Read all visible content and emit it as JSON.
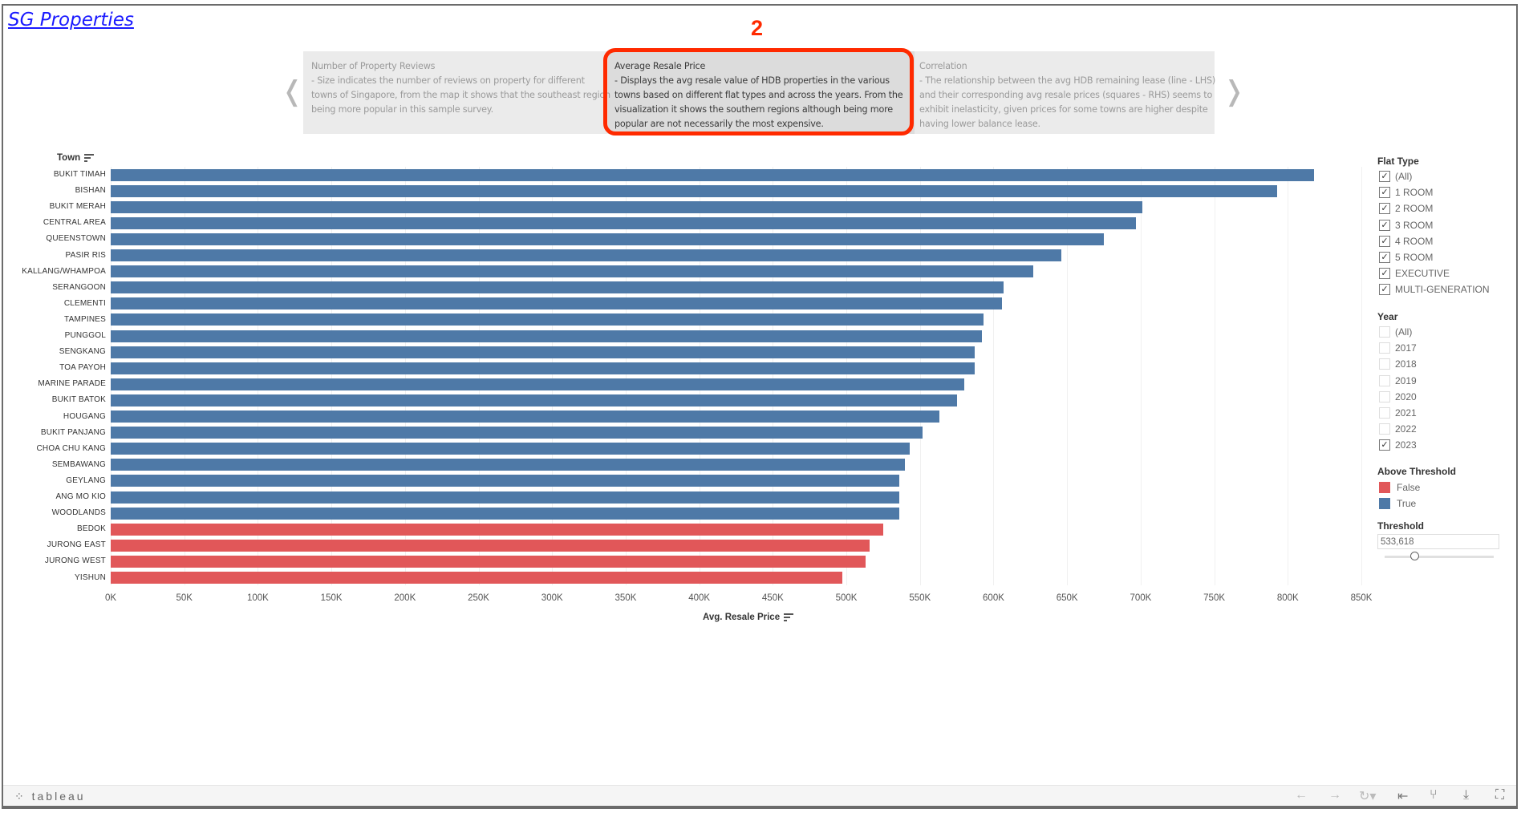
{
  "header": {
    "title": "SG Properties",
    "step_marker": "2"
  },
  "carousel": {
    "panels": [
      {
        "title": "Number of Property Reviews",
        "body": "- Size indicates the number of reviews on property for different towns of Singapore, from the map it shows that the southeast region being more popular in this sample survey."
      },
      {
        "title": "Average Resale Price",
        "body": "- Displays the avg resale value of HDB properties in the various towns based on different flat types and across the years. From the visualization it shows the southern regions although being more popular are not necessarily the most expensive."
      },
      {
        "title": "Correlation",
        "body": "- The relationship between the avg HDB remaining lease (line - LHS) and their corresponding avg resale prices (squares - RHS) seems to exhibit inelasticity, given prices for some towns are higher despite having lower balance lease."
      }
    ],
    "prev_icon": "chevron-left-icon",
    "next_icon": "chevron-right-icon"
  },
  "chart_data": {
    "type": "bar",
    "orientation": "horizontal",
    "ylabel": "Town",
    "xlabel": "Avg. Resale Price",
    "xlim": [
      0,
      850000
    ],
    "tick_labels": [
      "0K",
      "50K",
      "100K",
      "150K",
      "200K",
      "250K",
      "300K",
      "350K",
      "400K",
      "450K",
      "500K",
      "550K",
      "600K",
      "650K",
      "700K",
      "750K",
      "800K",
      "850K"
    ],
    "categories": [
      "BUKIT TIMAH",
      "BISHAN",
      "BUKIT MERAH",
      "CENTRAL AREA",
      "QUEENSTOWN",
      "PASIR RIS",
      "KALLANG/WHAMPOA",
      "SERANGOON",
      "CLEMENTI",
      "TAMPINES",
      "PUNGGOL",
      "SENGKANG",
      "TOA PAYOH",
      "MARINE PARADE",
      "BUKIT BATOK",
      "HOUGANG",
      "BUKIT PANJANG",
      "CHOA CHU KANG",
      "SEMBAWANG",
      "GEYLANG",
      "ANG MO KIO",
      "WOODLANDS",
      "BEDOK",
      "JURONG EAST",
      "JURONG WEST",
      "YISHUN"
    ],
    "values": [
      818000,
      793000,
      701000,
      697000,
      675000,
      646000,
      627000,
      607000,
      606000,
      593000,
      592000,
      587000,
      587000,
      580000,
      575000,
      563000,
      552000,
      543000,
      540000,
      536000,
      536000,
      536000,
      525000,
      516000,
      513000,
      497000
    ],
    "above_threshold": [
      true,
      true,
      true,
      true,
      true,
      true,
      true,
      true,
      true,
      true,
      true,
      true,
      true,
      true,
      true,
      true,
      true,
      true,
      true,
      true,
      true,
      true,
      false,
      false,
      false,
      false
    ],
    "colors": {
      "true": "#4e79a7",
      "false": "#e15759"
    }
  },
  "filters": {
    "flat_type": {
      "title": "Flat Type",
      "items": [
        {
          "label": "(All)",
          "checked": true
        },
        {
          "label": "1 ROOM",
          "checked": true
        },
        {
          "label": "2 ROOM",
          "checked": true
        },
        {
          "label": "3 ROOM",
          "checked": true
        },
        {
          "label": "4 ROOM",
          "checked": true
        },
        {
          "label": "5 ROOM",
          "checked": true
        },
        {
          "label": "EXECUTIVE",
          "checked": true
        },
        {
          "label": "MULTI-GENERATION",
          "checked": true
        }
      ]
    },
    "year": {
      "title": "Year",
      "items": [
        {
          "label": "(All)",
          "checked": false
        },
        {
          "label": "2017",
          "checked": false
        },
        {
          "label": "2018",
          "checked": false
        },
        {
          "label": "2019",
          "checked": false
        },
        {
          "label": "2020",
          "checked": false
        },
        {
          "label": "2021",
          "checked": false
        },
        {
          "label": "2022",
          "checked": false
        },
        {
          "label": "2023",
          "checked": true
        }
      ]
    }
  },
  "legend": {
    "title": "Above Threshold",
    "items": [
      {
        "label": "False",
        "color": "#e15759"
      },
      {
        "label": "True",
        "color": "#4e79a7"
      }
    ]
  },
  "threshold": {
    "title": "Threshold",
    "value": "533,618",
    "slider_fraction": 0.27
  },
  "toolbar": {
    "logo": "+ab|eau"
  }
}
